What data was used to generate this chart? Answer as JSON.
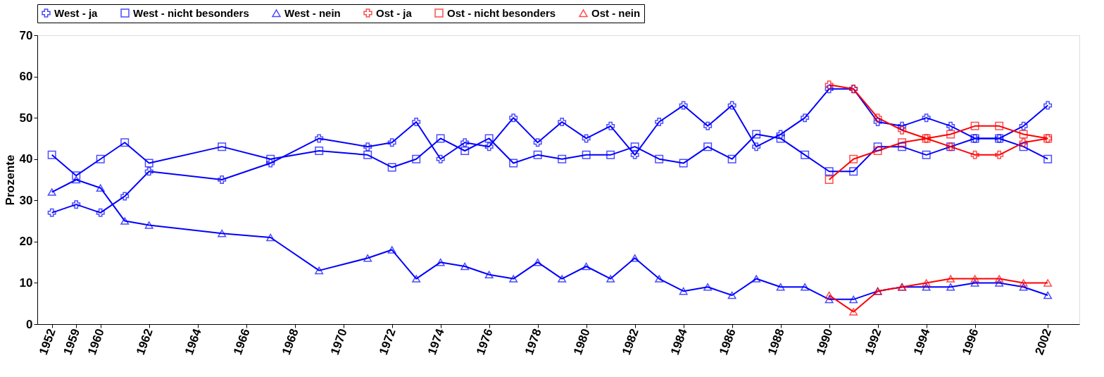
{
  "chart_data": {
    "type": "line",
    "ylabel": "Prozente",
    "categories": [
      "1952",
      "1959",
      "1960",
      null,
      "1962",
      null,
      "1964",
      null,
      "1966",
      null,
      "1968",
      null,
      "1970",
      null,
      "1972",
      null,
      "1974",
      null,
      "1976",
      null,
      "1978",
      null,
      "1980",
      null,
      "1982",
      null,
      "1984",
      null,
      "1986",
      null,
      "1988",
      null,
      "1990",
      null,
      "1992",
      null,
      "1994",
      null,
      "1996",
      null,
      null,
      "2002"
    ],
    "ylim": [
      0,
      70
    ],
    "yticks": [
      0,
      10,
      20,
      30,
      40,
      50,
      60,
      70
    ],
    "grid": false,
    "legend": "top",
    "series": [
      {
        "name": "West - ja",
        "color": "#0000ff",
        "marker": "cross",
        "values": [
          27,
          29,
          27,
          31,
          37,
          null,
          null,
          35,
          null,
          39,
          null,
          45,
          null,
          43,
          44,
          49,
          40,
          44,
          43,
          50,
          44,
          49,
          45,
          48,
          41,
          49,
          53,
          48,
          53,
          43,
          46,
          50,
          57,
          57,
          49,
          48,
          50,
          48,
          45,
          45,
          48,
          53
        ]
      },
      {
        "name": "West - nicht besonders",
        "color": "#0000ff",
        "marker": "square",
        "values": [
          41,
          36,
          40,
          44,
          39,
          null,
          null,
          43,
          null,
          40,
          null,
          42,
          null,
          41,
          38,
          40,
          45,
          42,
          45,
          39,
          41,
          40,
          41,
          41,
          43,
          40,
          39,
          43,
          40,
          46,
          45,
          41,
          37,
          37,
          43,
          43,
          41,
          43,
          45,
          45,
          43,
          40
        ]
      },
      {
        "name": "West - nein",
        "color": "#0000ff",
        "marker": "triangle",
        "values": [
          32,
          35,
          33,
          25,
          24,
          null,
          null,
          22,
          null,
          21,
          null,
          13,
          null,
          16,
          18,
          11,
          15,
          14,
          12,
          11,
          15,
          11,
          14,
          11,
          16,
          11,
          8,
          9,
          7,
          11,
          9,
          9,
          6,
          6,
          8,
          9,
          9,
          9,
          10,
          10,
          9,
          7
        ]
      },
      {
        "name": "Ost - ja",
        "color": "#ff0000",
        "marker": "cross",
        "values": [
          null,
          null,
          null,
          null,
          null,
          null,
          null,
          null,
          null,
          null,
          null,
          null,
          null,
          null,
          null,
          null,
          null,
          null,
          null,
          null,
          null,
          null,
          null,
          null,
          null,
          null,
          null,
          null,
          null,
          null,
          null,
          null,
          58,
          57,
          50,
          47,
          45,
          43,
          41,
          41,
          44,
          45
        ]
      },
      {
        "name": "Ost - nicht besonders",
        "color": "#ff0000",
        "marker": "square",
        "values": [
          null,
          null,
          null,
          null,
          null,
          null,
          null,
          null,
          null,
          null,
          null,
          null,
          null,
          null,
          null,
          null,
          null,
          null,
          null,
          null,
          null,
          null,
          null,
          null,
          null,
          null,
          null,
          null,
          null,
          null,
          null,
          null,
          35,
          40,
          42,
          44,
          45,
          46,
          48,
          48,
          46,
          45
        ]
      },
      {
        "name": "Ost - nein",
        "color": "#ff0000",
        "marker": "triangle",
        "values": [
          null,
          null,
          null,
          null,
          null,
          null,
          null,
          null,
          null,
          null,
          null,
          null,
          null,
          null,
          null,
          null,
          null,
          null,
          null,
          null,
          null,
          null,
          null,
          null,
          null,
          null,
          null,
          null,
          null,
          null,
          null,
          null,
          7,
          3,
          8,
          9,
          10,
          11,
          11,
          11,
          10,
          10
        ]
      }
    ]
  }
}
